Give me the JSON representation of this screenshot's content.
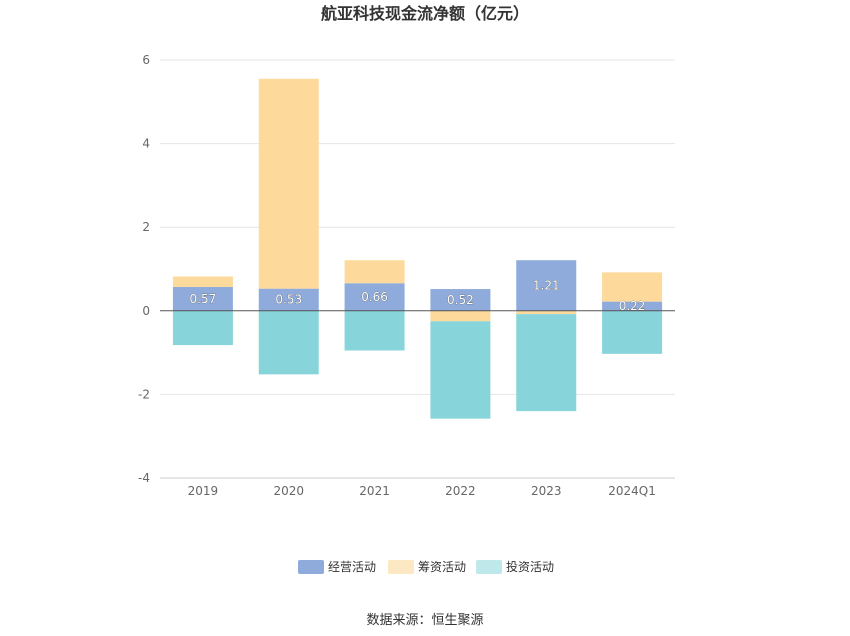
{
  "chart_data": {
    "type": "bar",
    "stacked": true,
    "title": "航亚科技现金流净额（亿元）",
    "categories": [
      "2019",
      "2020",
      "2021",
      "2022",
      "2023",
      "2024Q1"
    ],
    "series": [
      {
        "name": "经营活动",
        "color": "#8eabdb",
        "values": [
          0.57,
          0.53,
          0.66,
          0.52,
          1.21,
          0.22
        ],
        "labels": [
          "0.57",
          "0.53",
          "0.66",
          "0.52",
          "1.21",
          "0.22"
        ]
      },
      {
        "name": "筹资活动",
        "color": "#fdd99b",
        "values": [
          0.25,
          5.02,
          0.55,
          -0.25,
          -0.08,
          0.7
        ]
      },
      {
        "name": "投资活动",
        "color": "#87d5da",
        "values": [
          -0.82,
          -1.52,
          -0.95,
          -2.33,
          -2.32,
          -1.03
        ]
      }
    ],
    "legend_colors": [
      "#8eabdb",
      "#fde8c4",
      "#bfe8ea"
    ],
    "ylim": [
      -4,
      6
    ],
    "yticks": [
      -4,
      -2,
      0,
      2,
      4,
      6
    ],
    "grid": true,
    "legend_position": "bottom"
  },
  "source": "数据来源：恒生聚源"
}
